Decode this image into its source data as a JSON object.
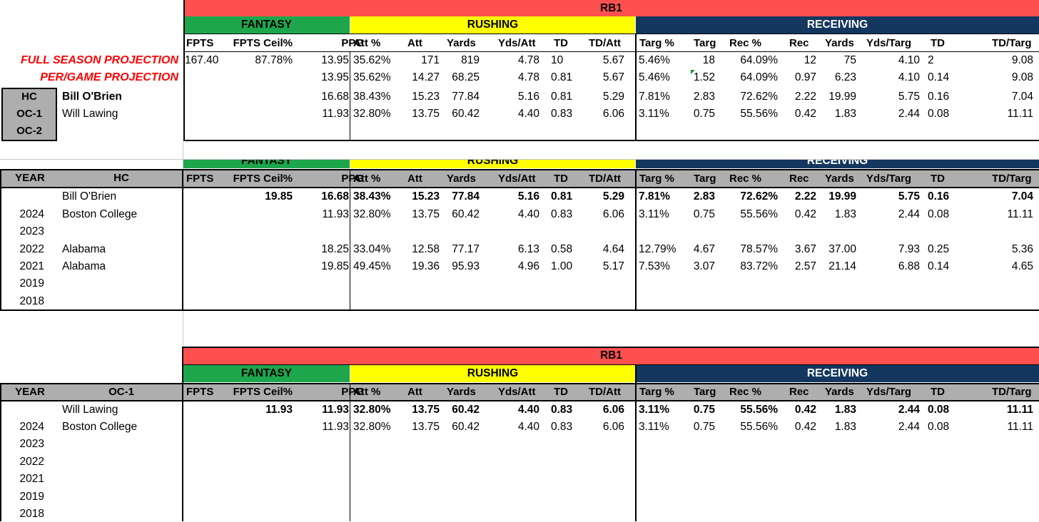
{
  "colors": {
    "position_band": "#ff5050",
    "fantasy_band": "#1ea64d",
    "rushing_band": "#ffff00",
    "receiving_band": "#14375f",
    "table_header": "#aeaeae",
    "projection_text": "#ff0000"
  },
  "position": "RB1",
  "groups": {
    "fantasy": "FANTASY",
    "rushing": "RUSHING",
    "receiving": "RECEIVING"
  },
  "columns": {
    "proj": [
      "FPTS",
      "FPTS Ceil%",
      "PPG",
      "Att %",
      "Att",
      "Yards",
      "Yds/Att",
      "TD",
      "TD/Att",
      "Targ %",
      "Targ",
      "Rec %",
      "Rec",
      "Yards",
      "Yds/Targ",
      "TD",
      "TD/Targ"
    ],
    "hist": [
      "FPTS",
      "FPTS Ceil%",
      "PPG",
      "Att %",
      "Att",
      "Yards",
      "Yds/Att",
      "TD",
      "TD/Att",
      "Targ %",
      "Targ",
      "Rec %",
      "Rec",
      "Yards",
      "Yds/Targ",
      "TD",
      "TD/Targ"
    ]
  },
  "projection": {
    "full_label": "FULL SEASON PROJECTION",
    "per_game_label": "PER/GAME PROJECTION",
    "full": [
      "167.40",
      "87.78%",
      "13.95",
      "35.62%",
      "171",
      "819",
      "4.78",
      "10",
      "5.67",
      "5.46%",
      "18",
      "64.09%",
      "12",
      "75",
      "4.10",
      "2",
      "9.08"
    ],
    "per_game": [
      "",
      "",
      "13.95",
      "35.62%",
      "14.27",
      "68.25",
      "4.78",
      "0.81",
      "5.67",
      "5.46%",
      "1.52",
      "64.09%",
      "0.97",
      "6.23",
      "4.10",
      "0.14",
      "9.08"
    ]
  },
  "coaches": [
    {
      "role": "HC",
      "name": "Bill O'Brien",
      "vals": [
        "",
        "",
        "16.68",
        "38.43%",
        "15.23",
        "77.84",
        "5.16",
        "0.81",
        "5.29",
        "7.81%",
        "2.83",
        "72.62%",
        "2.22",
        "19.99",
        "5.75",
        "0.16",
        "7.04"
      ]
    },
    {
      "role": "OC-1",
      "name": "Will Lawing",
      "vals": [
        "",
        "",
        "11.93",
        "32.80%",
        "13.75",
        "60.42",
        "4.40",
        "0.83",
        "6.06",
        "3.11%",
        "0.75",
        "55.56%",
        "0.42",
        "1.83",
        "2.44",
        "0.08",
        "11.11"
      ]
    },
    {
      "role": "OC-2",
      "name": "",
      "vals": []
    }
  ],
  "hc_table": {
    "year_header": "YEAR",
    "name_header": "HC",
    "summary": {
      "year": "",
      "name": "Bill O'Brien",
      "vals": [
        "",
        "19.85",
        "16.68",
        "38.43%",
        "15.23",
        "77.84",
        "5.16",
        "0.81",
        "5.29",
        "7.81%",
        "2.83",
        "72.62%",
        "2.22",
        "19.99",
        "5.75",
        "0.16",
        "7.04"
      ]
    },
    "rows": [
      {
        "year": "2024",
        "name": "Boston College",
        "vals": [
          "",
          "",
          "11.93",
          "32.80%",
          "13.75",
          "60.42",
          "4.40",
          "0.83",
          "6.06",
          "3.11%",
          "0.75",
          "55.56%",
          "0.42",
          "1.83",
          "2.44",
          "0.08",
          "11.11"
        ]
      },
      {
        "year": "2023",
        "name": "",
        "vals": []
      },
      {
        "year": "2022",
        "name": "Alabama",
        "vals": [
          "",
          "",
          "18.25",
          "33.04%",
          "12.58",
          "77.17",
          "6.13",
          "0.58",
          "4.64",
          "12.79%",
          "4.67",
          "78.57%",
          "3.67",
          "37.00",
          "7.93",
          "0.25",
          "5.36"
        ]
      },
      {
        "year": "2021",
        "name": "Alabama",
        "vals": [
          "",
          "",
          "19.85",
          "49.45%",
          "19.36",
          "95.93",
          "4.96",
          "1.00",
          "5.17",
          "7.53%",
          "3.07",
          "83.72%",
          "2.57",
          "21.14",
          "6.88",
          "0.14",
          "4.65"
        ]
      },
      {
        "year": "2019",
        "name": "",
        "vals": []
      },
      {
        "year": "2018",
        "name": "",
        "vals": []
      }
    ]
  },
  "oc_table": {
    "year_header": "YEAR",
    "name_header": "OC-1",
    "summary": {
      "year": "",
      "name": "Will Lawing",
      "vals": [
        "",
        "11.93",
        "11.93",
        "32.80%",
        "13.75",
        "60.42",
        "4.40",
        "0.83",
        "6.06",
        "3.11%",
        "0.75",
        "55.56%",
        "0.42",
        "1.83",
        "2.44",
        "0.08",
        "11.11"
      ]
    },
    "rows": [
      {
        "year": "2024",
        "name": "Boston College",
        "vals": [
          "",
          "",
          "11.93",
          "32.80%",
          "13.75",
          "60.42",
          "4.40",
          "0.83",
          "6.06",
          "3.11%",
          "0.75",
          "55.56%",
          "0.42",
          "1.83",
          "2.44",
          "0.08",
          "11.11"
        ]
      },
      {
        "year": "2023",
        "name": "",
        "vals": []
      },
      {
        "year": "2022",
        "name": "",
        "vals": []
      },
      {
        "year": "2021",
        "name": "",
        "vals": []
      },
      {
        "year": "2019",
        "name": "",
        "vals": []
      },
      {
        "year": "2018",
        "name": "",
        "vals": []
      }
    ]
  }
}
